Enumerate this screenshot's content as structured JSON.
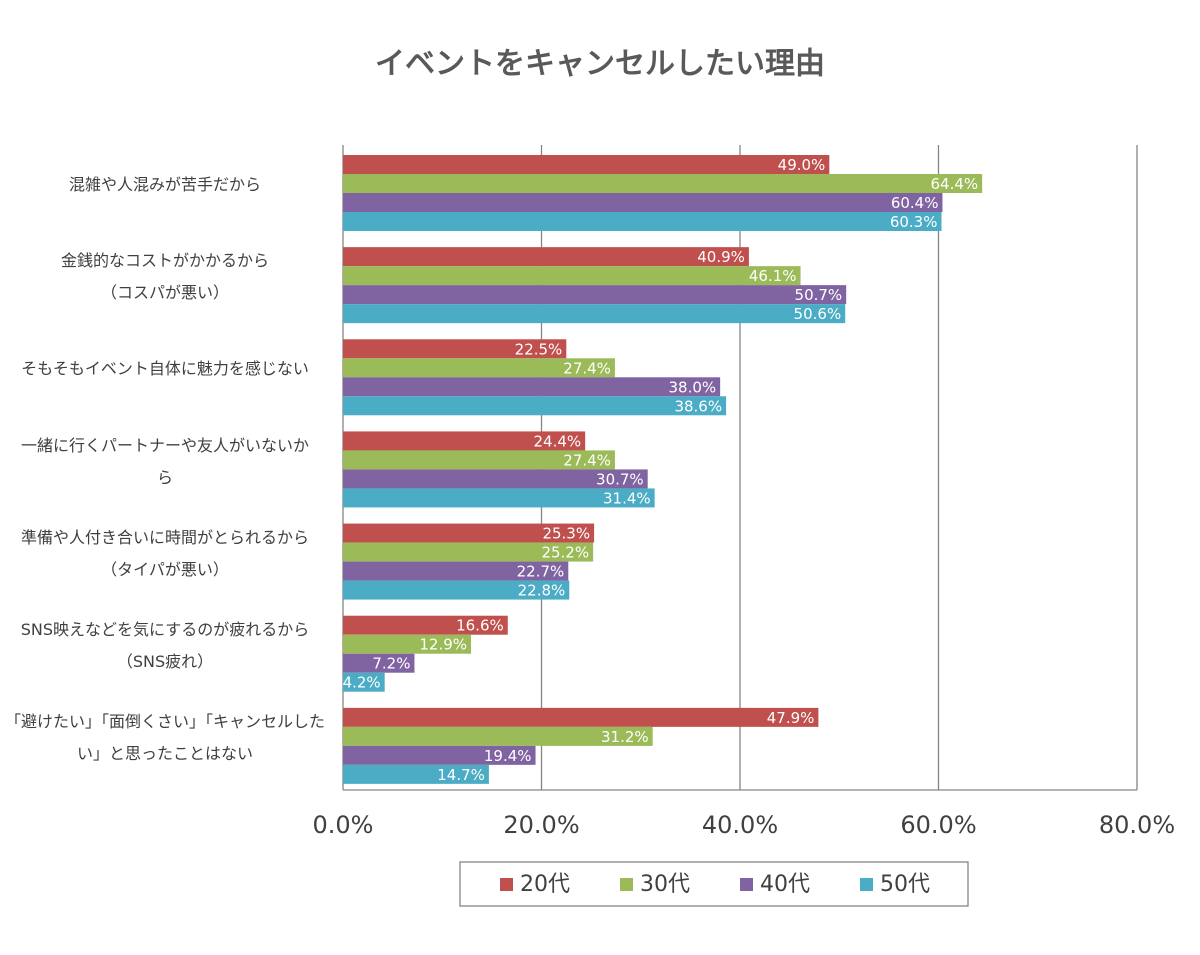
{
  "chart_data": {
    "type": "hbar",
    "title": "イベントをキャンセルしたい理由",
    "categories": [
      "混雑や人混みが苦手だから",
      "金銭的なコストがかかるから\n（コスパが悪い）",
      "そもそもイベント自体に魅力を感じない",
      "一緒に行くパートナーや友人がいないか\nら",
      "準備や人付き合いに時間がとられるから\n（タイパが悪い）",
      "SNS映えなどを気にするのが疲れるから\n（SNS疲れ）",
      "「避けたい」「面倒くさい」「キャンセルした\nい」と思ったことはない"
    ],
    "series": [
      {
        "name": "20代",
        "color": "#c0504d",
        "values": [
          49.0,
          40.9,
          22.5,
          24.4,
          25.3,
          16.6,
          47.9
        ],
        "value_labels": [
          "49.0%",
          "40.9%",
          "22.5%",
          "24.4%",
          "25.3%",
          "16.6%",
          "47.9%"
        ]
      },
      {
        "name": "30代",
        "color": "#9bbb59",
        "values": [
          64.4,
          46.1,
          27.4,
          27.4,
          25.2,
          12.9,
          31.2
        ],
        "value_labels": [
          "64.4%",
          "46.1%",
          "27.4%",
          "27.4%",
          "25.2%",
          "12.9%",
          "31.2%"
        ]
      },
      {
        "name": "40代",
        "color": "#8064a2",
        "values": [
          60.4,
          50.7,
          38.0,
          30.7,
          22.7,
          7.2,
          19.4
        ],
        "value_labels": [
          "60.4%",
          "50.7%",
          "38.0%",
          "30.7%",
          "22.7%",
          "7.2%",
          "19.4%"
        ]
      },
      {
        "name": "50代",
        "color": "#4bacc6",
        "values": [
          60.3,
          50.6,
          38.6,
          31.4,
          22.8,
          4.2,
          14.7
        ],
        "value_labels": [
          "60.3%",
          "50.6%",
          "38.6%",
          "31.4%",
          "22.8%",
          "4.2%",
          "14.7%"
        ]
      }
    ],
    "xlim": [
      0,
      80
    ],
    "xticks": [
      {
        "value": 0,
        "label": "0.0%"
      },
      {
        "value": 20,
        "label": "20.0%"
      },
      {
        "value": 40,
        "label": "40.0%"
      },
      {
        "value": 60,
        "label": "60.0%"
      },
      {
        "value": 80,
        "label": "80.0%"
      }
    ],
    "grid": true,
    "legend": "bottom"
  }
}
